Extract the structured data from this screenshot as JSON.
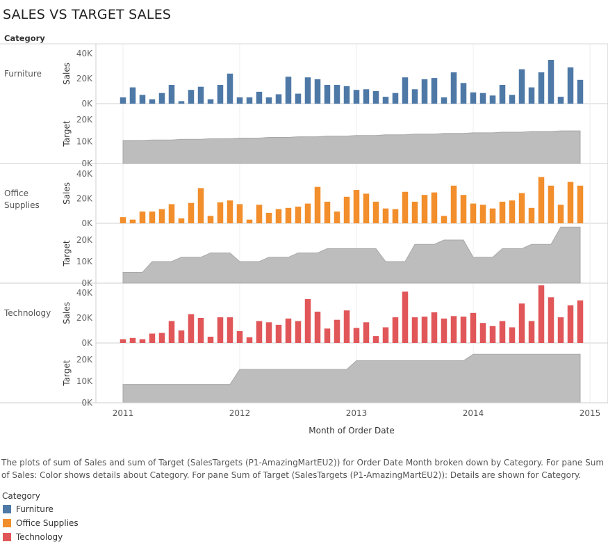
{
  "title": "SALES VS TARGET SALES",
  "header_label": "Category",
  "xlabel": "Month of Order Date",
  "caption": "The plots of sum of Sales and sum of Target (SalesTargets (P1-AmazingMartEU2)) for Order Date Month broken down by Category.  For pane Sum of Sales: Color shows details about Category.  For pane Sum of Target (SalesTargets (P1-AmazingMartEU2)):  Details are shown for Category.",
  "legend": {
    "title": "Category",
    "items": [
      {
        "label": "Furniture",
        "color": "#4e79a7"
      },
      {
        "label": "Office Supplies",
        "color": "#f28e2b"
      },
      {
        "label": "Technology",
        "color": "#e15759"
      }
    ]
  },
  "chart_data": {
    "type": "bar",
    "x_axis": {
      "label": "Month of Order Date",
      "ticks": [
        "2011",
        "2012",
        "2013",
        "2014",
        "2015"
      ]
    },
    "panels": [
      {
        "category": "Furniture",
        "category_lines": [
          "Furniture"
        ],
        "color": "#4e79a7",
        "sales": {
          "label": "Sales",
          "ticks": [
            "0K",
            "20K",
            "40K"
          ],
          "ylim": [
            0,
            40000
          ],
          "values": [
            5000,
            13000,
            7000,
            3500,
            8500,
            15000,
            2000,
            11000,
            13500,
            3500,
            15000,
            24000,
            5000,
            5000,
            9500,
            5000,
            7500,
            21500,
            8000,
            21000,
            19500,
            15000,
            15000,
            14000,
            11000,
            11500,
            10000,
            5500,
            8500,
            21000,
            11500,
            19500,
            20500,
            5000,
            25000,
            16500,
            9000,
            8500,
            6500,
            15000,
            7000,
            27500,
            13000,
            25000,
            35000,
            5500,
            29000,
            19000
          ]
        },
        "target": {
          "label": "Target",
          "ticks": [
            "0K",
            "10K",
            "20K"
          ],
          "ylim": [
            0,
            20000
          ],
          "type": "area",
          "values": [
            10500,
            10500,
            10500,
            10700,
            10700,
            10700,
            11000,
            11000,
            11000,
            11300,
            11300,
            11300,
            11600,
            11600,
            11600,
            11900,
            11900,
            11900,
            12200,
            12200,
            12200,
            12500,
            12500,
            12500,
            12800,
            12800,
            12800,
            13100,
            13100,
            13100,
            13400,
            13400,
            13400,
            13700,
            13700,
            13700,
            14000,
            14000,
            14000,
            14300,
            14300,
            14300,
            14600,
            14600,
            14600,
            14900,
            14900,
            14900
          ]
        }
      },
      {
        "category": "Office Supplies",
        "category_lines": [
          "Office",
          "Supplies"
        ],
        "color": "#f28e2b",
        "sales": {
          "label": "Sales",
          "ticks": [
            "0K",
            "20K",
            "40K"
          ],
          "ylim": [
            0,
            40000
          ],
          "values": [
            5000,
            3000,
            9500,
            9500,
            11500,
            15500,
            4000,
            16500,
            28500,
            6000,
            17000,
            18500,
            15500,
            3000,
            15000,
            8500,
            11500,
            12500,
            13500,
            16000,
            29500,
            17500,
            9500,
            21500,
            27000,
            24000,
            17500,
            12000,
            11500,
            25500,
            17500,
            23000,
            25000,
            6000,
            30500,
            23000,
            16000,
            15000,
            12000,
            17500,
            18500,
            24500,
            12500,
            37500,
            30500,
            15000,
            33500,
            30500
          ]
        },
        "target": {
          "label": "Target",
          "ticks": [
            "0K",
            "10K",
            "20K"
          ],
          "ylim": [
            0,
            27000
          ],
          "type": "area",
          "values": [
            5000,
            5000,
            5000,
            10000,
            10000,
            10000,
            12000,
            12000,
            12000,
            14000,
            14000,
            14000,
            10000,
            10000,
            10000,
            12000,
            12000,
            12000,
            14000,
            14000,
            14000,
            16000,
            16000,
            16000,
            16000,
            16000,
            16000,
            10000,
            10000,
            10000,
            18000,
            18000,
            18000,
            20000,
            20000,
            20000,
            12000,
            12000,
            12000,
            16000,
            16000,
            16000,
            18000,
            18000,
            18000,
            26000,
            26000,
            26000
          ]
        }
      },
      {
        "category": "Technology",
        "category_lines": [
          "Technology"
        ],
        "color": "#e15759",
        "sales": {
          "label": "Sales",
          "ticks": [
            "0K",
            "20K",
            "40K"
          ],
          "ylim": [
            0,
            40000
          ],
          "values": [
            3000,
            4000,
            3000,
            7500,
            8000,
            17500,
            10000,
            23000,
            20000,
            5000,
            20500,
            20500,
            9500,
            4500,
            17500,
            16500,
            14500,
            19500,
            17500,
            35000,
            25000,
            11500,
            18500,
            26000,
            12000,
            16500,
            5500,
            12500,
            20500,
            41000,
            20500,
            21000,
            24500,
            19500,
            21500,
            21000,
            24000,
            16000,
            13500,
            17500,
            12500,
            31500,
            17500,
            46000,
            36500,
            20500,
            30000,
            34000
          ]
        },
        "target": {
          "label": "Target",
          "ticks": [
            "0K",
            "10K",
            "20K"
          ],
          "ylim": [
            0,
            23000
          ],
          "type": "area",
          "values": [
            8500,
            8500,
            8500,
            8500,
            8500,
            8500,
            8500,
            8500,
            8500,
            8500,
            8500,
            8500,
            15500,
            15500,
            15500,
            15500,
            15500,
            15500,
            15500,
            15500,
            15500,
            15500,
            15500,
            15500,
            19500,
            19500,
            19500,
            19500,
            19500,
            19500,
            19500,
            19500,
            19500,
            19500,
            19500,
            19500,
            22500,
            22500,
            22500,
            22500,
            22500,
            22500,
            22500,
            22500,
            22500,
            22500,
            22500,
            22500
          ]
        }
      }
    ]
  }
}
